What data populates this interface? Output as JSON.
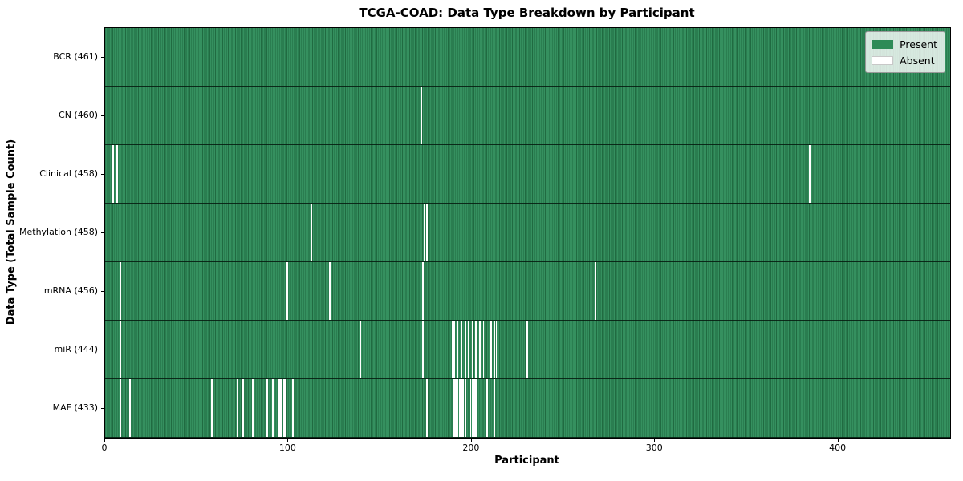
{
  "colors": {
    "present": "#2e8b57",
    "absent": "#ffffff",
    "absent_swatch_border": "#c8c8c8",
    "plot_border": "#000000"
  },
  "chart_data": {
    "type": "heatmap",
    "title": "TCGA-COAD: Data Type Breakdown by Participant",
    "xlabel": "Participant",
    "ylabel": "Data Type (Total Sample Count)",
    "n_participants": 461,
    "x_ticks": [
      0,
      100,
      200,
      300,
      400
    ],
    "legend_position": "upper right",
    "legend_items": [
      {
        "label": "Present",
        "color": "#2e8b57"
      },
      {
        "label": "Absent",
        "color": "#ffffff"
      }
    ],
    "rows": [
      {
        "label": "BCR (461)",
        "data_type": "BCR",
        "total_samples": 461,
        "absent_participants": []
      },
      {
        "label": "CN (460)",
        "data_type": "CN",
        "total_samples": 460,
        "absent_participants": [
          172
        ]
      },
      {
        "label": "Clinical (458)",
        "data_type": "Clinical",
        "total_samples": 458,
        "absent_participants": [
          4,
          6,
          384
        ]
      },
      {
        "label": "Methylation (458)",
        "data_type": "Methylation",
        "total_samples": 458,
        "absent_participants": [
          112,
          174,
          175
        ]
      },
      {
        "label": "mRNA (456)",
        "data_type": "mRNA",
        "total_samples": 456,
        "absent_participants": [
          8,
          99,
          122,
          173,
          267
        ]
      },
      {
        "label": "miR (444)",
        "data_type": "miR",
        "total_samples": 444,
        "absent_participants": [
          8,
          139,
          173,
          189,
          190,
          192,
          194,
          196,
          198,
          200,
          202,
          204,
          206,
          210,
          212,
          213,
          230
        ]
      },
      {
        "label": "MAF (433)",
        "data_type": "MAF",
        "total_samples": 433,
        "absent_participants": [
          8,
          13,
          58,
          72,
          75,
          80,
          88,
          91,
          94,
          95,
          96,
          97,
          98,
          102,
          175,
          190,
          191,
          192,
          193,
          194,
          195,
          196,
          199,
          200,
          201,
          202,
          208,
          212
        ]
      }
    ]
  }
}
